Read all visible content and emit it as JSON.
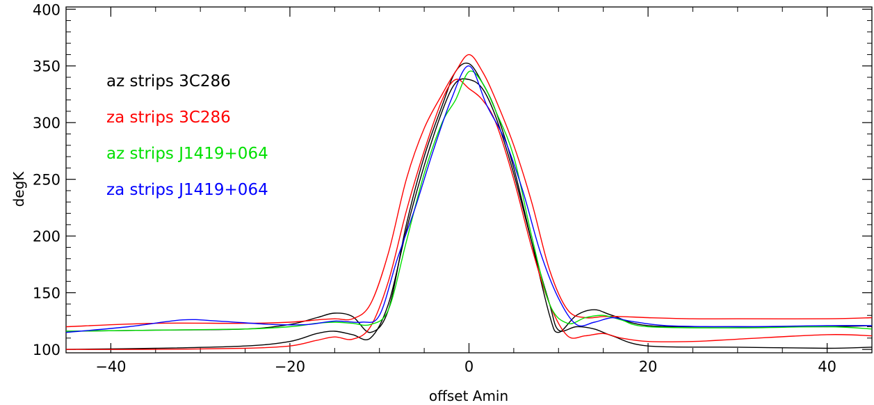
{
  "chart_data": {
    "type": "line",
    "title": "",
    "xlabel": "offset Amin",
    "ylabel": "degK",
    "xlim": [
      -45,
      45
    ],
    "ylim": [
      97,
      402
    ],
    "x_ticks": [
      -40,
      -20,
      0,
      20,
      40
    ],
    "y_ticks": [
      100,
      150,
      200,
      250,
      300,
      350,
      400
    ],
    "grid": false,
    "legend_position": "top-left",
    "series": [
      {
        "name": "az strips 3C286",
        "color": "#000000",
        "curves": [
          {
            "x": [
              -45,
              -35,
              -25,
              -20,
              -17,
              -15,
              -13,
              -11,
              -9,
              -7,
              -5,
              -3,
              -1.5,
              0,
              1.5,
              3,
              5,
              7,
              9,
              10,
              12,
              14,
              16,
              20,
              30,
              40,
              45
            ],
            "y": [
              100,
              101,
              103,
              107,
              114,
              116,
              113,
              110,
              140,
              205,
              262,
              310,
              335,
              338,
              330,
              305,
              255,
              195,
              140,
              117,
              120,
              118,
              112,
              103,
              102,
              101,
              102
            ]
          },
          {
            "x": [
              -45,
              -35,
              -25,
              -20,
              -17,
              -15,
              -13,
              -11,
              -9,
              -7,
              -5,
              -3,
              -1.5,
              0,
              1.5,
              3,
              5,
              7,
              9,
              10,
              12,
              14,
              16,
              20,
              30,
              40,
              45
            ],
            "y": [
              116,
              117,
              118,
              122,
              128,
              132,
              129,
              115,
              135,
              210,
              270,
              315,
              345,
              352,
              335,
              310,
              260,
              195,
              130,
              115,
              130,
              135,
              130,
              121,
              120,
              120,
              121
            ]
          }
        ]
      },
      {
        "name": "za strips 3C286",
        "color": "#ff0000",
        "curves": [
          {
            "x": [
              -45,
              -35,
              -25,
              -20,
              -17,
              -15,
              -13,
              -11,
              -9,
              -7,
              -5,
              -3,
              -1.5,
              0,
              1.5,
              3,
              5,
              7,
              9,
              11,
              13,
              15,
              17,
              20,
              25,
              30,
              40,
              45
            ],
            "y": [
              100,
              100,
              101,
              103,
              108,
              111,
              109,
              120,
              160,
              222,
              275,
              320,
              338,
              330,
              320,
              300,
              250,
              190,
              140,
              112,
              112,
              114,
              110,
              107,
              107,
              109,
              113,
              112
            ]
          },
          {
            "x": [
              -45,
              -35,
              -25,
              -20,
              -17,
              -15,
              -13,
              -11,
              -9,
              -7,
              -5,
              -3,
              -1.5,
              0,
              1.5,
              3,
              5,
              7,
              9,
              11,
              13,
              15,
              17,
              20,
              25,
              30,
              40,
              45
            ],
            "y": [
              120,
              123,
              123,
              124,
              126,
              127,
              127,
              140,
              185,
              250,
              295,
              325,
              345,
              360,
              345,
              320,
              280,
              230,
              170,
              135,
              128,
              129,
              129,
              128,
              127,
              127,
              127,
              128
            ]
          }
        ]
      },
      {
        "name": "az strips J1419+064",
        "color": "#00e000",
        "curves": [
          {
            "x": [
              -45,
              -35,
              -25,
              -20,
              -17,
              -15,
              -13,
              -11,
              -9,
              -7,
              -5,
              -3,
              -1.5,
              0,
              1.5,
              3,
              5,
              7,
              9,
              11,
              13,
              15,
              17,
              20,
              30,
              40,
              45
            ],
            "y": [
              116,
              117,
              118,
              120,
              123,
              124,
              123,
              122,
              135,
              195,
              255,
              300,
              320,
              345,
              335,
              310,
              270,
              200,
              140,
              123,
              128,
              130,
              126,
              120,
              119,
              120,
              118
            ]
          }
        ]
      },
      {
        "name": "za strips J1419+064",
        "color": "#0000ff",
        "curves": [
          {
            "x": [
              -45,
              -38,
              -32,
              -28,
              -22,
              -18,
              -15,
              -12,
              -10,
              -8,
              -6,
              -4,
              -2,
              0,
              2,
              4,
              6,
              8,
              10,
              12,
              14,
              16,
              18,
              22,
              30,
              40,
              45
            ],
            "y": [
              115,
              120,
              126,
              125,
              122,
              122,
              125,
              124,
              130,
              180,
              225,
              275,
              320,
              350,
              315,
              285,
              240,
              185,
              145,
              122,
              124,
              128,
              125,
              121,
              120,
              121,
              121
            ]
          }
        ]
      }
    ]
  }
}
